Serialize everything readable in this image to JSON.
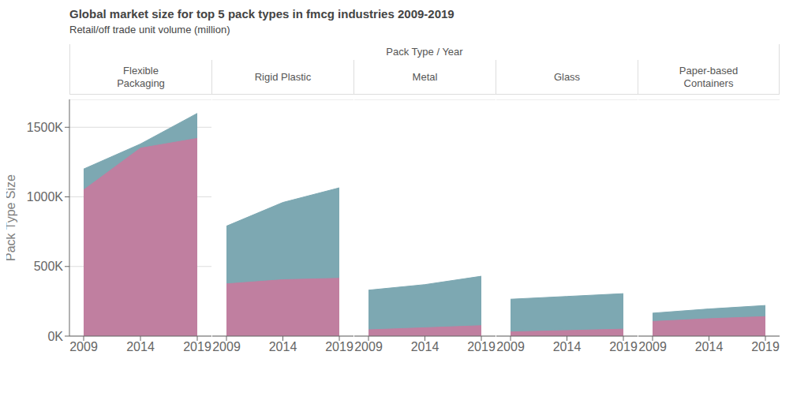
{
  "chart_data": {
    "type": "area",
    "stacked": false,
    "title": "Global market size for top 5 pack types in fmcg industries 2009-2019",
    "subtitle": "Retail/off trade unit volume (million)",
    "x_label": "Pack Type  /  Year",
    "y_label": "Pack Type Size",
    "grid": true,
    "ylim": [
      0,
      1700000
    ],
    "yticks": [
      {
        "value": 0,
        "label": "0K"
      },
      {
        "value": 500000,
        "label": "500K"
      },
      {
        "value": 1000000,
        "label": "1000K"
      },
      {
        "value": 1500000,
        "label": "1500K"
      }
    ],
    "categories": [
      "2009",
      "2014",
      "2019"
    ],
    "groups": [
      {
        "name": "Flexible\nPackaging",
        "series": [
          {
            "color": "#c07fa0",
            "values": [
              1050000,
              1350000,
              1420000
            ]
          },
          {
            "color": "#7da8b2",
            "values": [
              1200000,
              1380000,
              1600000
            ]
          }
        ]
      },
      {
        "name": "Rigid Plastic",
        "series": [
          {
            "color": "#c07fa0",
            "values": [
              375000,
              405000,
              415000
            ]
          },
          {
            "color": "#7da8b2",
            "values": [
              790000,
              960000,
              1065000
            ]
          }
        ]
      },
      {
        "name": "Metal",
        "series": [
          {
            "color": "#c07fa0",
            "values": [
              45000,
              60000,
              75000
            ]
          },
          {
            "color": "#7da8b2",
            "values": [
              330000,
              370000,
              430000
            ]
          }
        ]
      },
      {
        "name": "Glass",
        "series": [
          {
            "color": "#c07fa0",
            "values": [
              30000,
              40000,
              50000
            ]
          },
          {
            "color": "#7da8b2",
            "values": [
              265000,
              285000,
              305000
            ]
          }
        ]
      },
      {
        "name": "Paper-based\nContainers",
        "series": [
          {
            "color": "#c07fa0",
            "values": [
              105000,
              125000,
              140000
            ]
          },
          {
            "color": "#7da8b2",
            "values": [
              165000,
              195000,
              220000
            ]
          }
        ]
      }
    ]
  }
}
